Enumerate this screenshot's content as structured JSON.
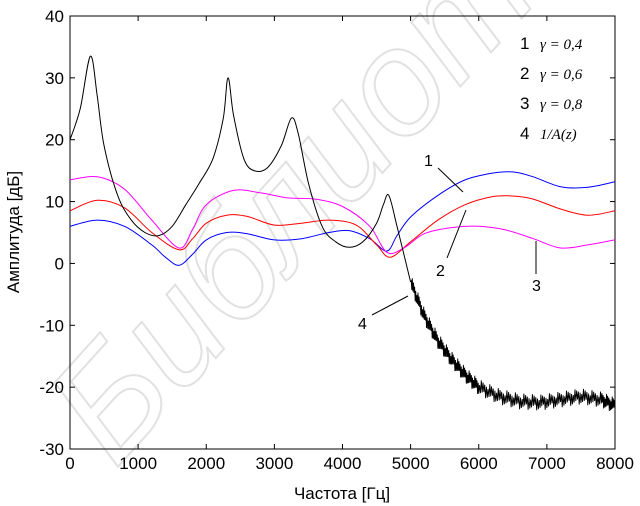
{
  "watermark": "Библиот",
  "chart_data": {
    "type": "line",
    "title": "",
    "xlabel": "Частота  [Гц]",
    "ylabel": "Амплитуда  [дБ]",
    "xlim": [
      0,
      8000
    ],
    "ylim": [
      -30,
      40
    ],
    "xticks": [
      0,
      1000,
      2000,
      3000,
      4000,
      5000,
      6000,
      7000,
      8000
    ],
    "yticks": [
      -30,
      -20,
      -10,
      0,
      10,
      20,
      30,
      40
    ],
    "xtick_labels": [
      "0",
      "1000",
      "2000",
      "3000",
      "4000",
      "5000",
      "6000",
      "7000",
      "8000"
    ],
    "ytick_labels": [
      "-30",
      "-20",
      "-10",
      "0",
      "10",
      "20",
      "30",
      "40"
    ],
    "grid": false,
    "legend": {
      "position": "top-right",
      "entries": [
        {
          "num": "1",
          "text": "γ = 0,4"
        },
        {
          "num": "2",
          "text": "γ = 0,6"
        },
        {
          "num": "3",
          "text": "γ = 0,8"
        },
        {
          "num": "4",
          "text": "1/A(z)"
        }
      ]
    },
    "series": [
      {
        "label": "1",
        "color": "#0000ff",
        "x": [
          0,
          400,
          800,
          1200,
          1400,
          1600,
          1800,
          2000,
          2300,
          2600,
          3000,
          3400,
          3800,
          4100,
          4400,
          4650,
          4800,
          5000,
          5400,
          5800,
          6200,
          6500,
          6800,
          7200,
          7600,
          8000
        ],
        "y": [
          6.0,
          7.0,
          6.0,
          3.0,
          1.0,
          -0.3,
          1.5,
          3.8,
          5.0,
          4.8,
          3.8,
          4.0,
          5.0,
          5.3,
          4.0,
          2.0,
          4.5,
          7.5,
          11.0,
          13.5,
          14.6,
          14.8,
          14.0,
          12.4,
          12.3,
          13.2
        ]
      },
      {
        "label": "2",
        "color": "#ff0000",
        "x": [
          0,
          400,
          800,
          1200,
          1600,
          1800,
          2000,
          2300,
          2600,
          3000,
          3400,
          3800,
          4200,
          4500,
          4700,
          5000,
          5400,
          5800,
          6200,
          6500,
          6800,
          7200,
          7600,
          8000
        ],
        "y": [
          8.5,
          10.2,
          9.0,
          5.0,
          2.2,
          4.0,
          6.5,
          7.8,
          7.6,
          6.2,
          6.5,
          7.0,
          6.2,
          3.0,
          1.0,
          3.5,
          7.0,
          9.5,
          10.8,
          10.9,
          10.4,
          8.8,
          7.8,
          8.5
        ]
      },
      {
        "label": "3",
        "color": "#ff00ff",
        "x": [
          0,
          400,
          800,
          1200,
          1600,
          1800,
          2000,
          2400,
          2800,
          3200,
          3600,
          4000,
          4400,
          4650,
          4900,
          5200,
          5600,
          6000,
          6400,
          6800,
          7200,
          7600,
          8000
        ],
        "y": [
          13.5,
          14.0,
          12.0,
          7.0,
          2.5,
          5.5,
          9.5,
          11.8,
          11.4,
          10.6,
          10.4,
          9.2,
          6.0,
          1.8,
          2.5,
          4.8,
          5.8,
          6.0,
          5.4,
          4.0,
          2.5,
          3.0,
          3.8
        ]
      },
      {
        "label": "4",
        "color": "#000000",
        "x": [
          0,
          150,
          300,
          400,
          500,
          700,
          900,
          1100,
          1300,
          1500,
          1700,
          1900,
          2100,
          2250,
          2320,
          2400,
          2550,
          2700,
          2900,
          3100,
          3250,
          3350,
          3500,
          3700,
          3900,
          4100,
          4300,
          4500,
          4600,
          4680,
          4800,
          5000,
          5200,
          5400,
          5600,
          5800,
          6000,
          6300,
          6600,
          6900,
          7200,
          7500,
          7800,
          8000
        ],
        "y": [
          20.0,
          25.0,
          33.5,
          27.0,
          19.0,
          11.0,
          7.0,
          5.0,
          4.5,
          6.0,
          9.5,
          13.0,
          17.0,
          23.5,
          30.0,
          24.0,
          17.0,
          15.0,
          15.5,
          19.0,
          23.5,
          21.0,
          13.0,
          6.0,
          3.5,
          2.6,
          3.5,
          6.5,
          9.5,
          11.0,
          6.0,
          -3.0,
          -8.5,
          -12.5,
          -15.5,
          -18.0,
          -20.0,
          -21.5,
          -22.3,
          -22.5,
          -22.0,
          -21.5,
          -22.0,
          -23.0
        ]
      }
    ],
    "callouts": [
      {
        "label": "1",
        "series": "1"
      },
      {
        "label": "2",
        "series": "2"
      },
      {
        "label": "3",
        "series": "3"
      },
      {
        "label": "4",
        "series": "4"
      }
    ]
  }
}
